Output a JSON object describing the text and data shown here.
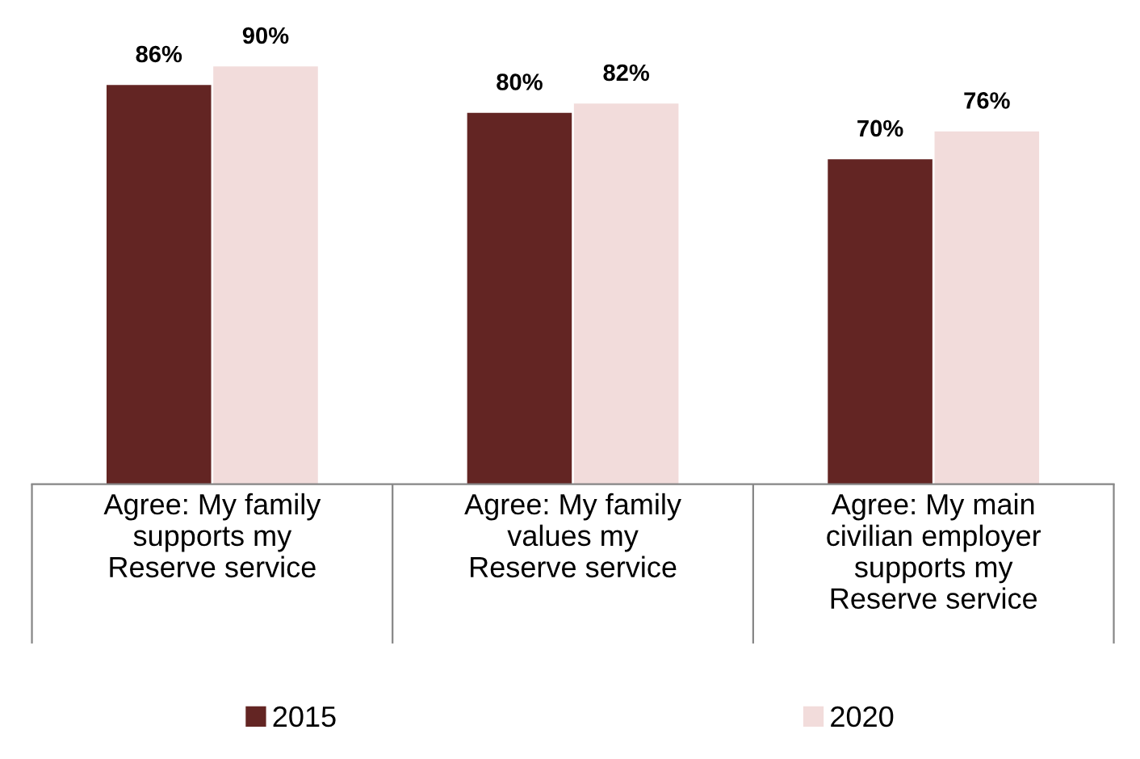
{
  "chart_data": {
    "type": "bar",
    "categories": [
      "Agree: My family\nsupports my\nReserve service",
      "Agree: My family\nvalues my\nReserve service",
      "Agree: My main\ncivilian employer\nsupports my\nReserve service"
    ],
    "series": [
      {
        "name": "2015",
        "color": "#632523",
        "values": [
          86,
          80,
          70
        ],
        "value_labels": [
          "86%",
          "80%",
          "70%"
        ]
      },
      {
        "name": "2020",
        "color": "#f2dcdb",
        "values": [
          90,
          82,
          76
        ],
        "value_labels": [
          "90%",
          "82%",
          "76%"
        ]
      }
    ],
    "tick_labels": "x",
    "grid": false,
    "legend": "bottom"
  }
}
